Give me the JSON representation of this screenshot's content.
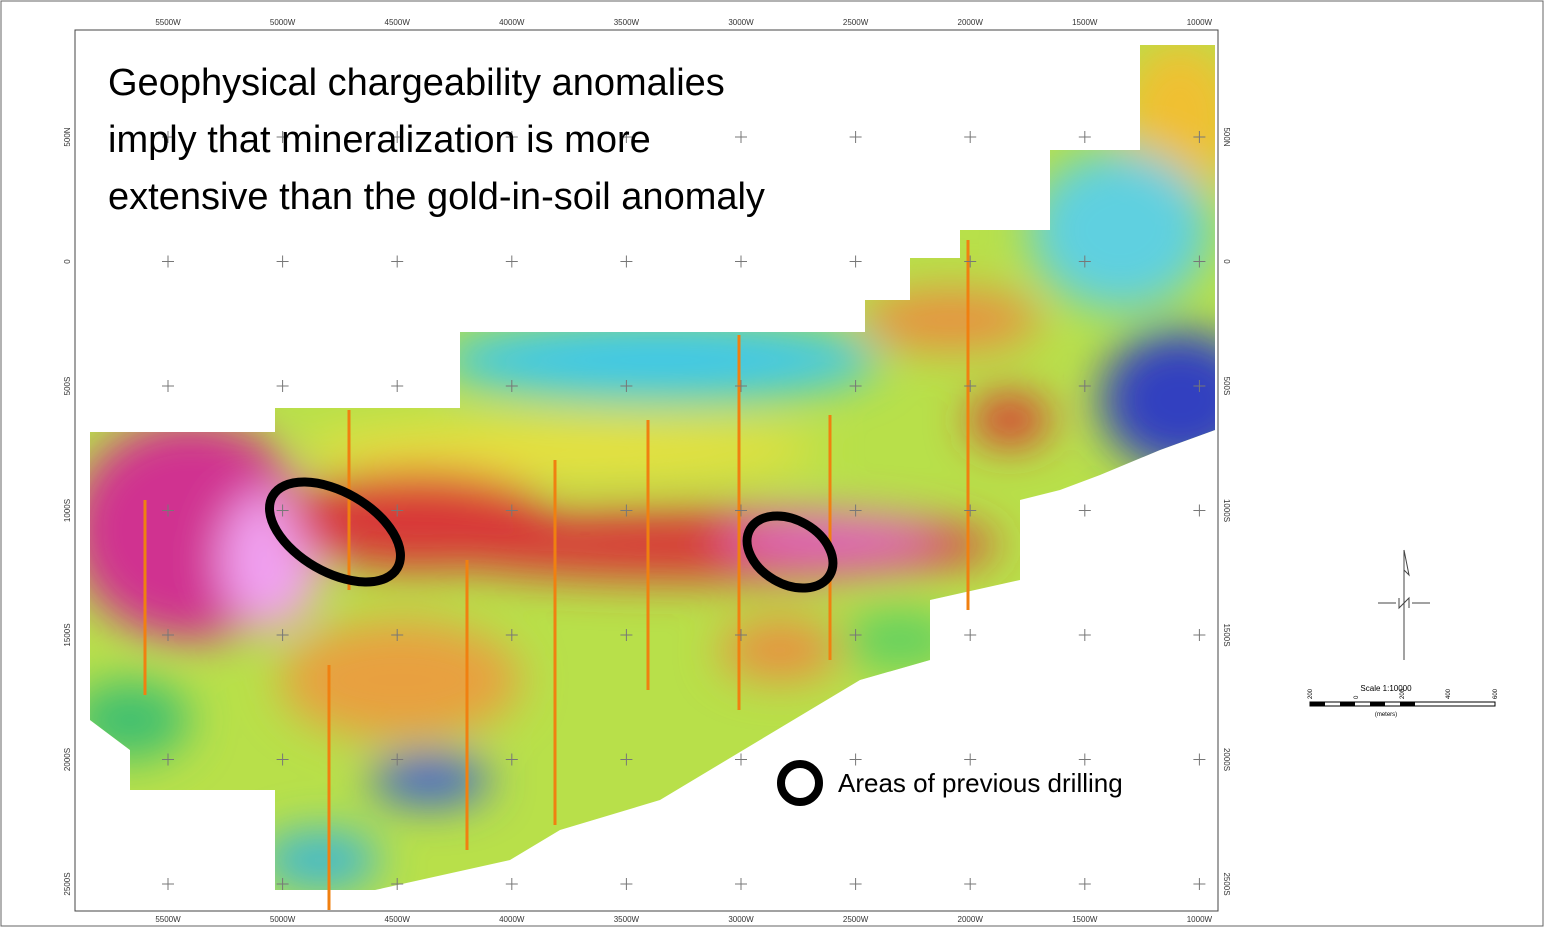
{
  "title_lines": [
    "Geophysical chargeability anomalies",
    "imply that mineralization is more",
    "extensive than the gold-in-soil anomaly"
  ],
  "x_axis_labels": [
    "5500W",
    "5000W",
    "4500W",
    "4000W",
    "3500W",
    "3000W",
    "2500W",
    "2000W",
    "1500W",
    "1000W"
  ],
  "y_axis_labels": [
    "500N",
    "0",
    "500S",
    "1000S",
    "1500S",
    "2000S",
    "2500S"
  ],
  "legend": {
    "label": "Areas of previous drilling"
  },
  "scale": {
    "title": "Scale 1:10000",
    "ticks": [
      "200",
      "0",
      "200",
      "400",
      "600"
    ],
    "unit": "(meters)"
  }
}
